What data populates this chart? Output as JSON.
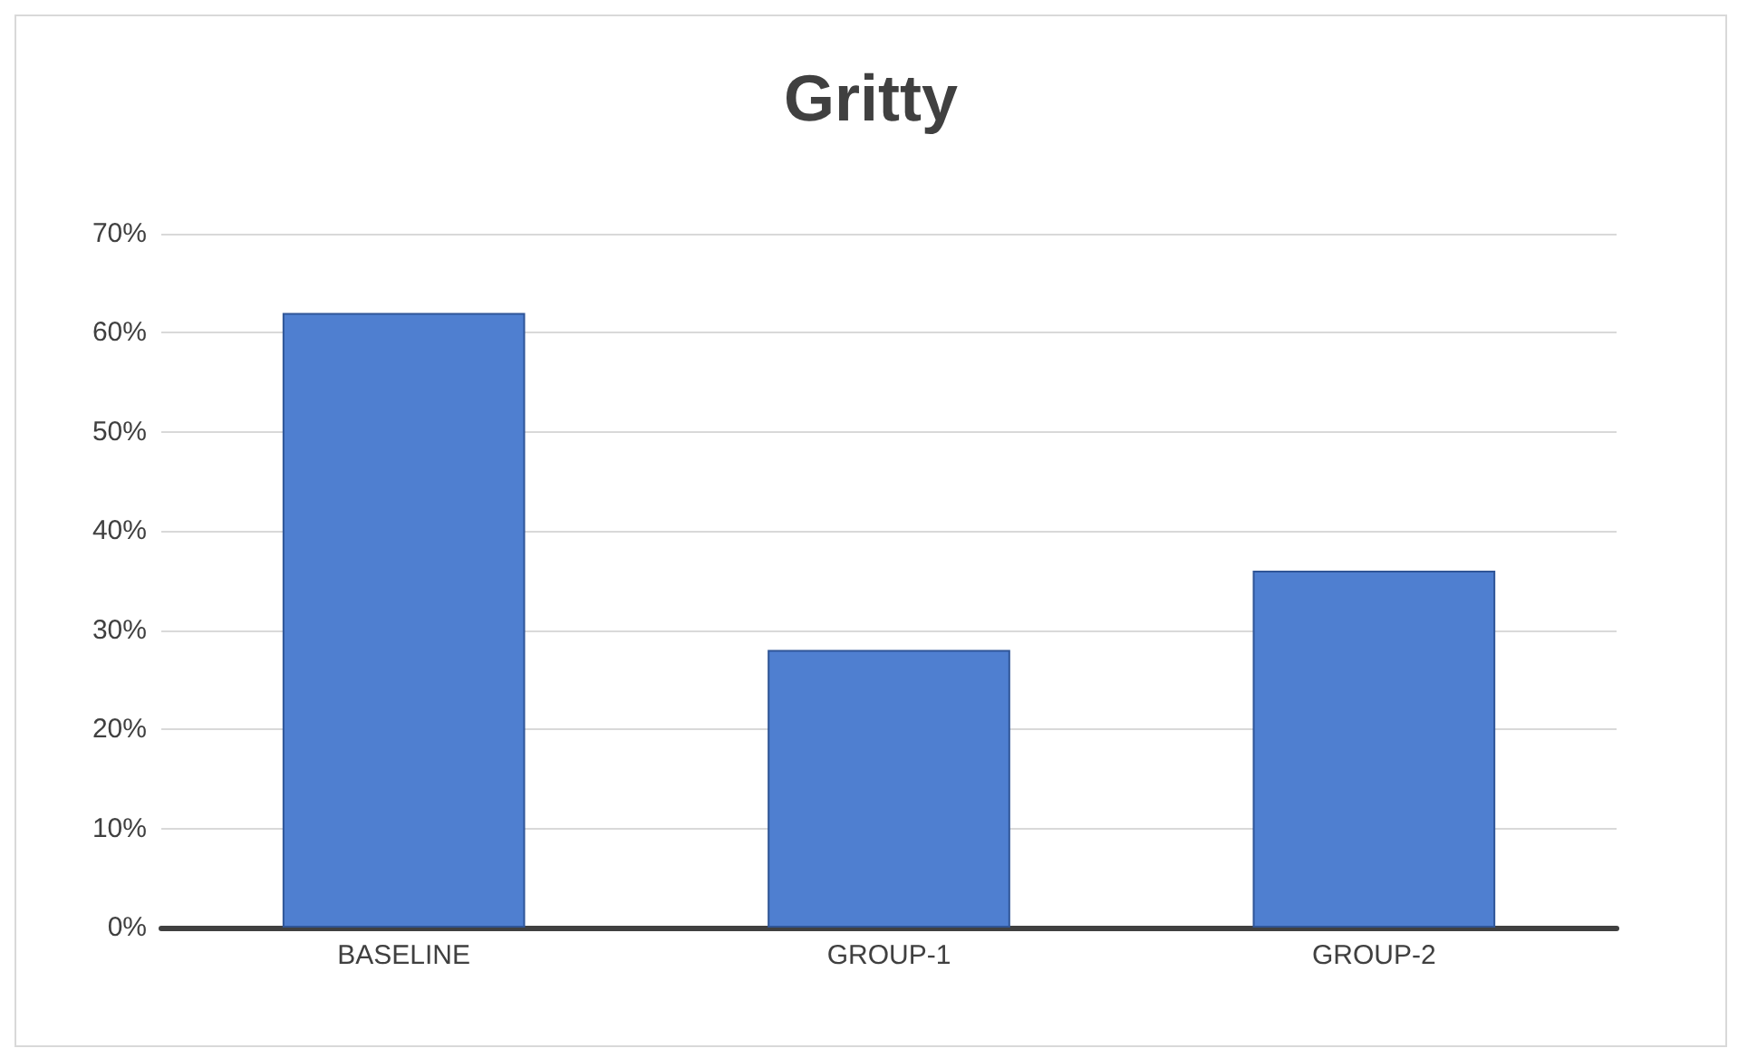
{
  "chart_data": {
    "type": "bar",
    "title": "Gritty",
    "categories": [
      "BASELINE",
      "GROUP-1",
      "GROUP-2"
    ],
    "values": [
      62,
      28,
      36
    ],
    "color": "#4f7fd0",
    "ylim": [
      0,
      70
    ],
    "yticks": [
      {
        "value": 0,
        "label": "0%"
      },
      {
        "value": 10,
        "label": "10%"
      },
      {
        "value": 20,
        "label": "20%"
      },
      {
        "value": 30,
        "label": "30%"
      },
      {
        "value": 40,
        "label": "40%"
      },
      {
        "value": 50,
        "label": "50%"
      },
      {
        "value": 60,
        "label": "60%"
      },
      {
        "value": 70,
        "label": "70%"
      }
    ],
    "grid": true
  }
}
